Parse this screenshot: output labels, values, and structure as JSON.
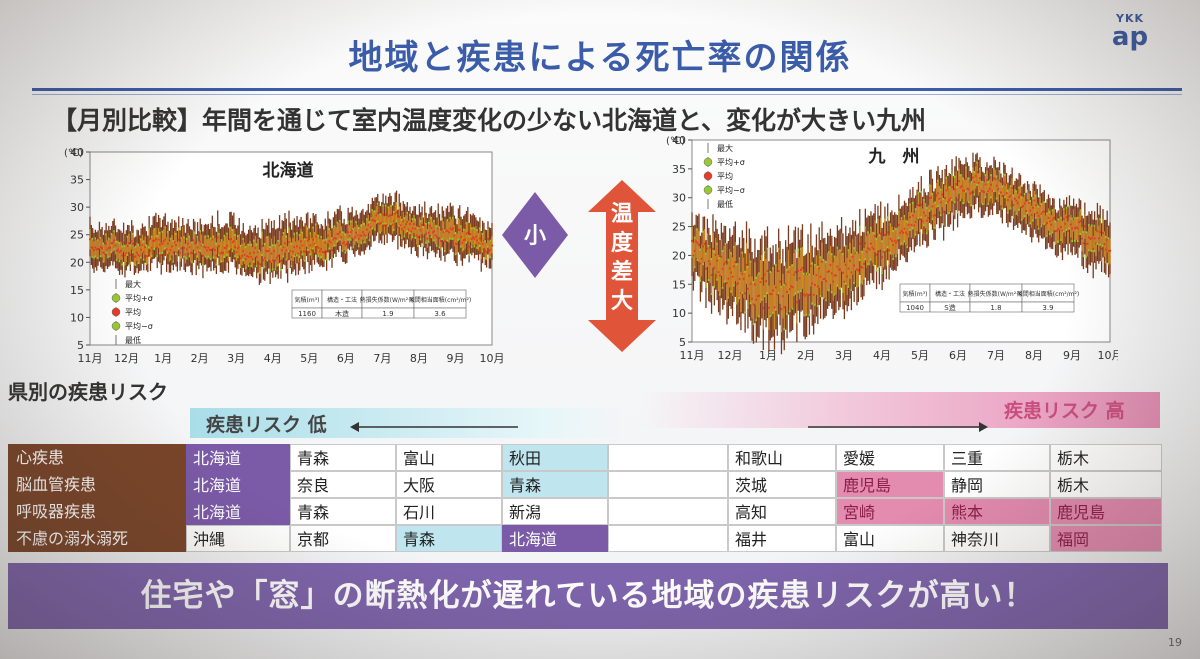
{
  "title": "地域と疾患による死亡率の関係",
  "logo": {
    "line1": "YKK",
    "line2": "ap"
  },
  "subtitle": "【月別比較】年間を通じて室内温度変化の少ない北海道と、変化が大きい九州",
  "legend": {
    "items": [
      "最大",
      "平均+σ",
      "平均",
      "平均−σ",
      "最低"
    ]
  },
  "colors": {
    "band": "#7a3a1c",
    "mid": "#d08a22",
    "mean": "#e63b2a",
    "sigma": "#9ac832",
    "purple": "#7b5aa8",
    "red": "#e0553a",
    "pink": "#e48bb0"
  },
  "indicators": {
    "small": "小",
    "large": [
      "温",
      "度",
      "差",
      "大"
    ]
  },
  "chart_data": [
    {
      "type": "area",
      "title": "北海道",
      "unit": "(℃)",
      "ylim": [
        5,
        40
      ],
      "yticks": [
        5,
        10,
        15,
        20,
        25,
        30,
        35,
        40
      ],
      "xticks": [
        "11月",
        "12月",
        "1月",
        "2月",
        "3月",
        "4月",
        "5月",
        "6月",
        "7月",
        "8月",
        "9月",
        "10月"
      ],
      "x": [
        0,
        0.5,
        1,
        1.5,
        2,
        2.5,
        3,
        3.5,
        4,
        4.5,
        5,
        5.5,
        6,
        6.5,
        7,
        7.5,
        8,
        8.5,
        9,
        9.5,
        10,
        10.5,
        11
      ],
      "series": [
        {
          "name": "最大",
          "values": [
            26,
            26,
            25.5,
            26,
            27,
            26.5,
            26,
            27,
            26.5,
            25.5,
            26,
            26.5,
            27,
            27.5,
            28,
            29.5,
            31,
            30.5,
            29,
            28.5,
            28,
            27,
            26
          ]
        },
        {
          "name": "平均",
          "values": [
            23,
            23,
            22.5,
            22.5,
            23,
            23,
            22.5,
            23,
            22.5,
            21.5,
            21,
            22,
            23,
            23.5,
            24.5,
            26,
            28,
            27.5,
            26,
            25,
            24.5,
            23.5,
            23
          ]
        },
        {
          "name": "最低",
          "values": [
            20,
            20,
            19.5,
            20,
            20,
            20,
            19.5,
            20,
            19.5,
            18.5,
            18,
            19,
            20,
            21,
            22,
            23.5,
            25,
            24.5,
            23,
            22,
            21,
            21,
            20.5
          ]
        }
      ],
      "table": {
        "headers": [
          "気積(m³)",
          "構造・工法",
          "熱損失係数(W/m²·K)",
          "隙間相当面積(cm²/m²)"
        ],
        "values": [
          "1160",
          "木造",
          "1.9",
          "3.6"
        ]
      }
    },
    {
      "type": "area",
      "title": "九　州",
      "unit": "(℃)",
      "ylim": [
        5,
        40
      ],
      "yticks": [
        5,
        10,
        15,
        20,
        25,
        30,
        35,
        40
      ],
      "xticks": [
        "11月",
        "12月",
        "1月",
        "2月",
        "3月",
        "4月",
        "5月",
        "6月",
        "7月",
        "8月",
        "9月",
        "10月"
      ],
      "x": [
        0,
        0.5,
        1,
        1.5,
        2,
        2.5,
        3,
        3.5,
        4,
        4.5,
        5,
        5.5,
        6,
        6.5,
        7,
        7.5,
        8,
        8.5,
        9,
        9.5,
        10,
        10.5,
        11
      ],
      "series": [
        {
          "name": "最大",
          "values": [
            25,
            24,
            23,
            22,
            21,
            21,
            22,
            22,
            24,
            25,
            27,
            28,
            31,
            33,
            35,
            36,
            35,
            33,
            31,
            29,
            28,
            27,
            26
          ]
        },
        {
          "name": "平均",
          "values": [
            21,
            19,
            17,
            15,
            14,
            14,
            15.5,
            16,
            18,
            20,
            22,
            24,
            27,
            29,
            31,
            33,
            32,
            30,
            28,
            26,
            25,
            23,
            22
          ]
        },
        {
          "name": "最低",
          "values": [
            16,
            13,
            11,
            9,
            7,
            7,
            9,
            10,
            12,
            15,
            17,
            20,
            23,
            25,
            27,
            29,
            28,
            26,
            24,
            22,
            21,
            19,
            18
          ]
        }
      ],
      "table": {
        "headers": [
          "気積(m³)",
          "構造・工法",
          "熱損失係数(W/m²·K)",
          "隙間相当面積(cm²/m²)"
        ],
        "values": [
          "1040",
          "S造",
          "1.8",
          "3.9"
        ]
      }
    }
  ],
  "risk": {
    "section_title": "県別の疾患リスク",
    "low_label": "疾患リスク 低",
    "high_label": "疾患リスク 高",
    "rows": [
      {
        "disease": "心疾患",
        "low": [
          "北海道",
          "青森",
          "富山",
          "秋田"
        ],
        "high": [
          "和歌山",
          "愛媛",
          "三重",
          "栃木"
        ]
      },
      {
        "disease": "脳血管疾患",
        "low": [
          "北海道",
          "奈良",
          "大阪",
          "青森"
        ],
        "high": [
          "茨城",
          "鹿児島",
          "静岡",
          "栃木"
        ]
      },
      {
        "disease": "呼吸器疾患",
        "low": [
          "北海道",
          "青森",
          "石川",
          "新潟"
        ],
        "high": [
          "高知",
          "宮崎",
          "熊本",
          "鹿児島"
        ]
      },
      {
        "disease": "不慮の溺水溺死",
        "low": [
          "沖縄",
          "京都",
          "青森",
          "北海道"
        ],
        "high": [
          "福井",
          "富山",
          "神奈川",
          "福岡"
        ]
      }
    ]
  },
  "conclusion": "住宅や「窓」の断熱化が遅れている地域の疾患リスクが高い！",
  "page_number": "19"
}
